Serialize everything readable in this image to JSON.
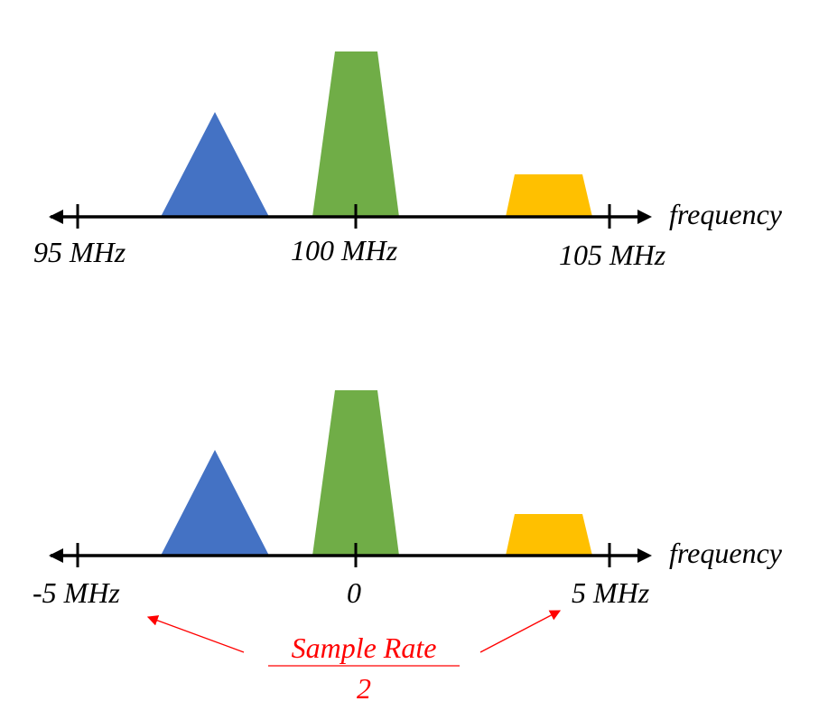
{
  "colors": {
    "blue": "#4472C4",
    "green": "#70AD47",
    "yellow": "#FFC000",
    "axis": "#000000",
    "annotation": "#FF0000"
  },
  "top_axis": {
    "axis_label": "frequency",
    "ticks": [
      "95 MHz",
      "100 MHz",
      "105 MHz"
    ]
  },
  "bottom_axis": {
    "axis_label": "frequency",
    "ticks": [
      "-5 MHz",
      "0",
      "5 MHz"
    ]
  },
  "annotation": {
    "numerator": "Sample Rate",
    "denominator": "2"
  }
}
